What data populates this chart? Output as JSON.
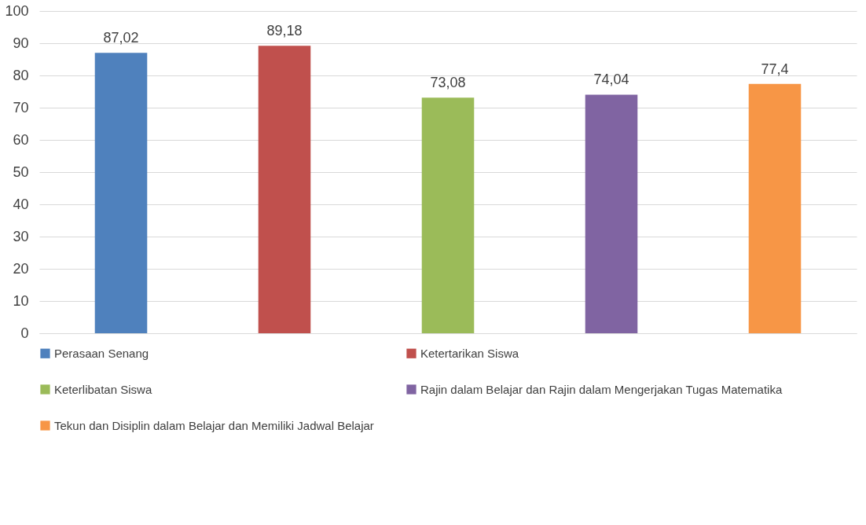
{
  "chart_data": {
    "type": "bar",
    "categories": [
      null
    ],
    "series": [
      {
        "name": "Perasaan Senang",
        "color": "#4f81bd",
        "values": [
          87.02
        ],
        "value_labels": [
          "87,02"
        ]
      },
      {
        "name": "Ketertarikan Siswa",
        "color": "#c0504d",
        "values": [
          89.18
        ],
        "value_labels": [
          "89,18"
        ]
      },
      {
        "name": "Keterlibatan Siswa",
        "color": "#9bbb59",
        "values": [
          73.08
        ],
        "value_labels": [
          "73,08"
        ]
      },
      {
        "name": "Rajin dalam Belajar dan Rajin dalam Mengerjakan Tugas Matematika",
        "color": "#8064a2",
        "values": [
          74.04
        ],
        "value_labels": [
          "74,04"
        ]
      },
      {
        "name": "Tekun dan Disiplin dalam Belajar dan Memiliki Jadwal Belajar",
        "color": "#f79646",
        "values": [
          77.4
        ],
        "value_labels": [
          "77,4"
        ]
      }
    ],
    "ylim": [
      0,
      100
    ],
    "yticks": [
      0,
      10,
      20,
      30,
      40,
      50,
      60,
      70,
      80,
      90,
      100
    ],
    "grid": "y",
    "legend": "bottom",
    "tick_labels": "y"
  }
}
